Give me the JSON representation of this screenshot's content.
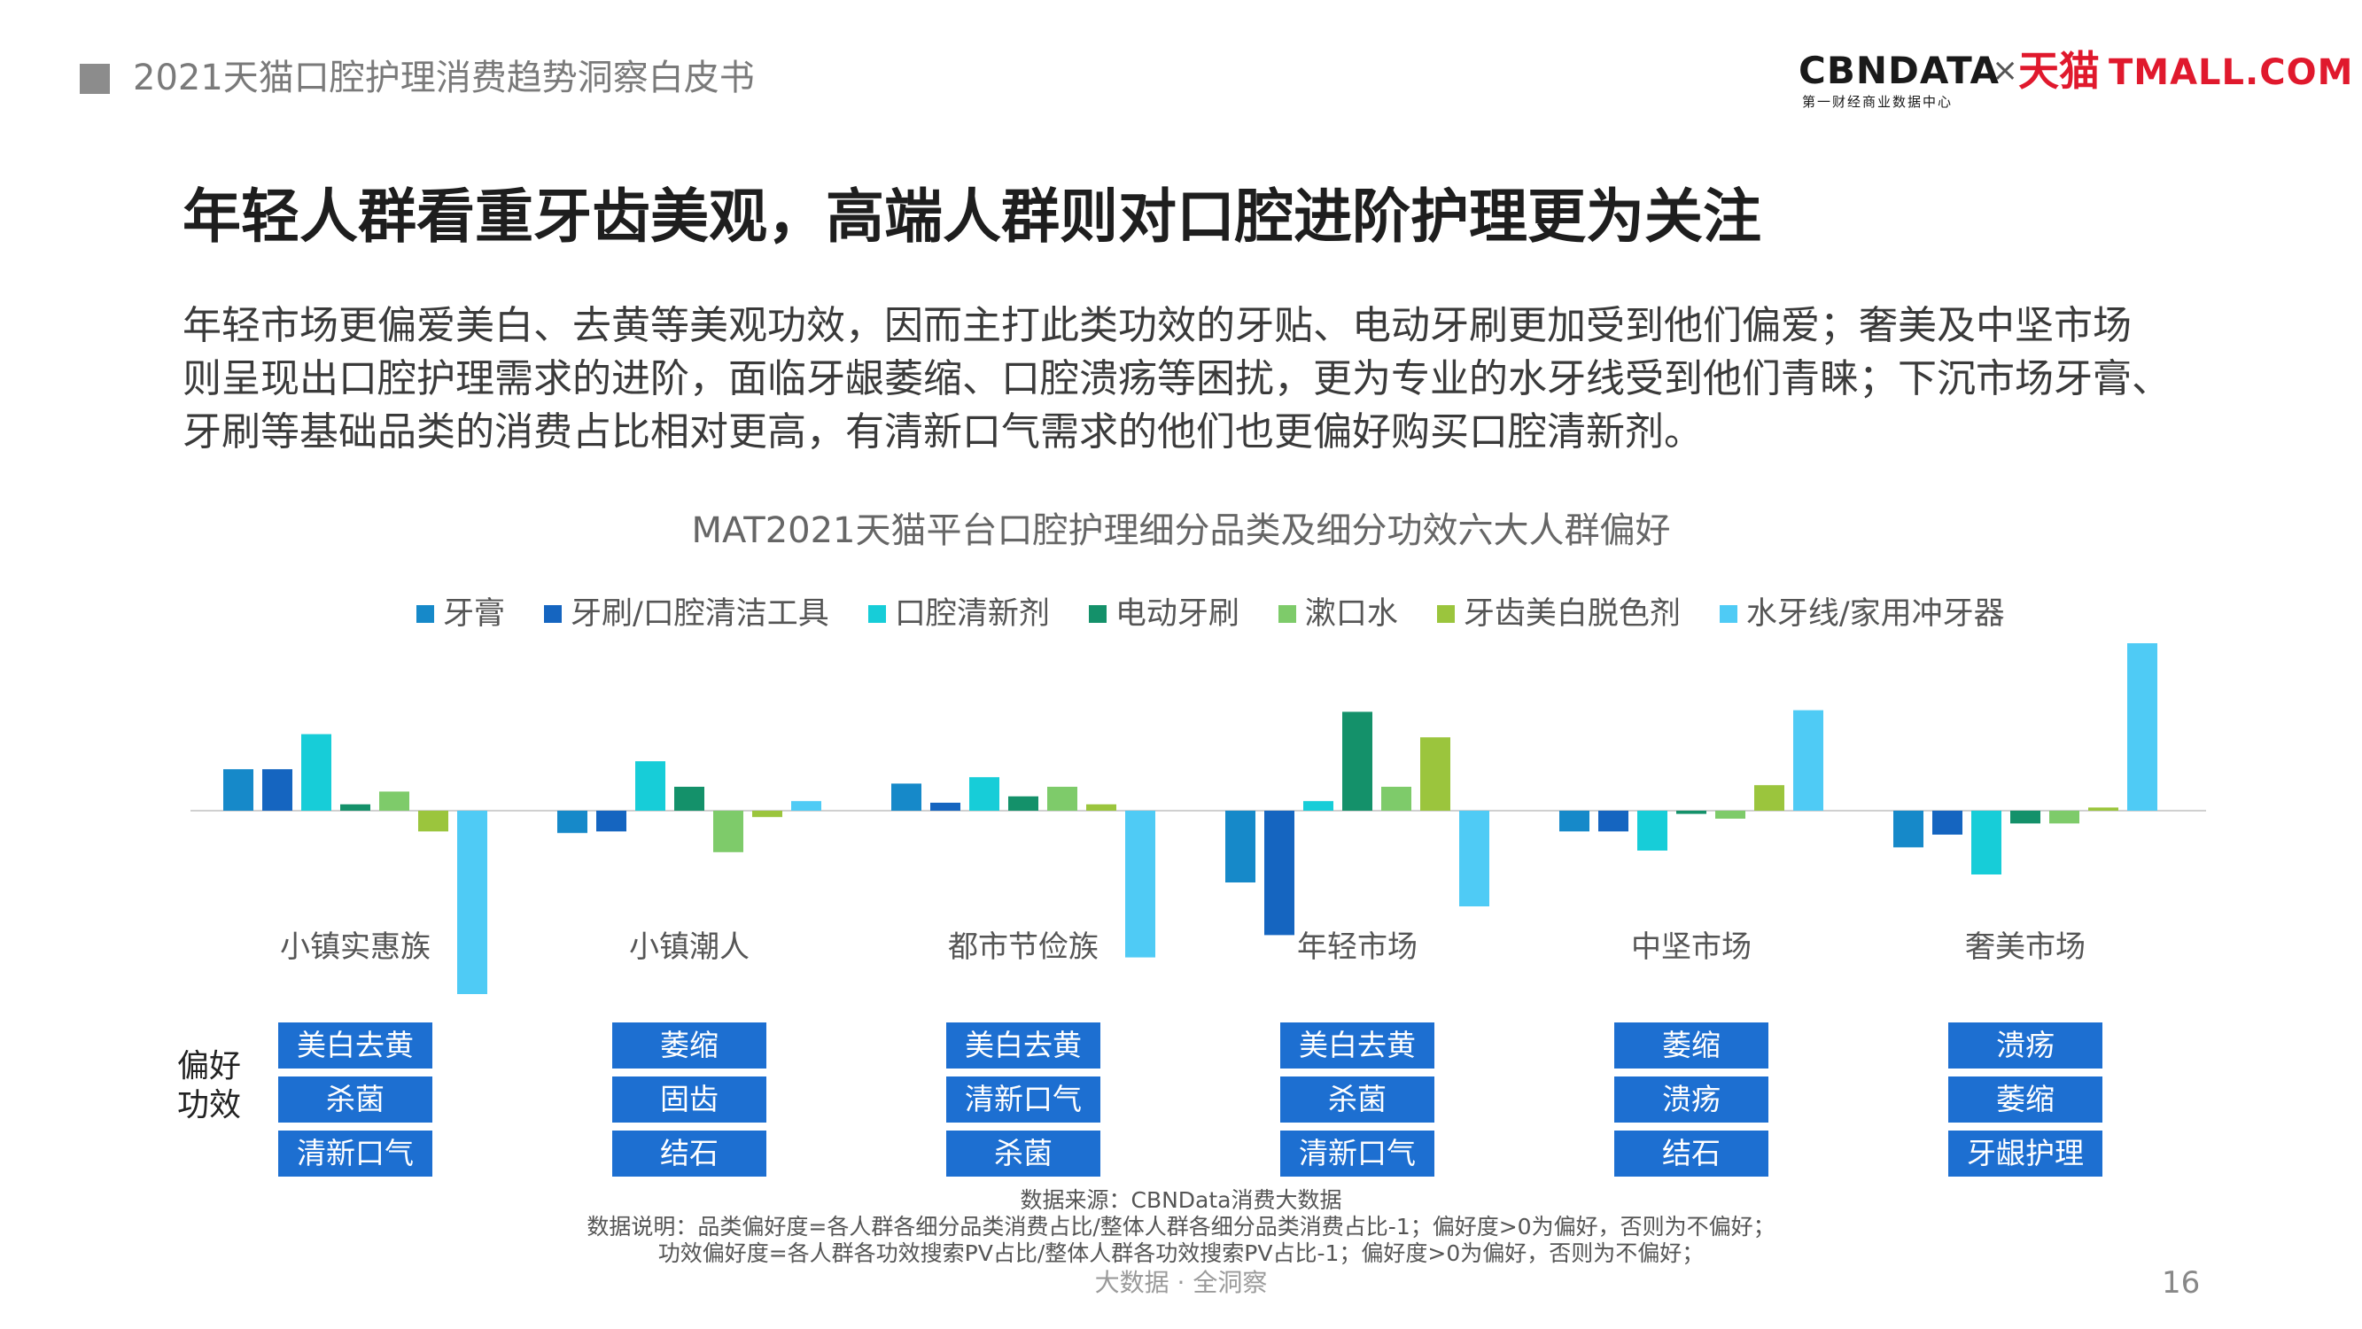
{
  "header": {
    "doc_title": "2021天猫口腔护理消费趋势洞察白皮书",
    "logo_cbn": "CBNDATA",
    "logo_cbn_sub": "第一财经商业数据中心",
    "logo_x": "×",
    "logo_tmall_cn": "天猫",
    "logo_tmall_en": "TMALL.COM"
  },
  "headline": "年轻人群看重牙齿美观，高端人群则对口腔进阶护理更为关注",
  "body_lines": [
    "年轻市场更偏爱美白、去黄等美观功效，因而主打此类功效的牙贴、电动牙刷更加受到他们偏爱；奢美及中坚市场",
    "则呈现出口腔护理需求的进阶，面临牙龈萎缩、口腔溃疡等困扰，更为专业的水牙线受到他们青睐；下沉市场牙膏、",
    "牙刷等基础品类的消费占比相对更高，有清新口气需求的他们也更偏好购买口腔清新剂。"
  ],
  "chart_data": {
    "type": "bar",
    "title": "MAT2021天猫平台口腔护理细分品类及细分功效六大人群偏好",
    "categories": [
      "小镇实惠族",
      "小镇潮人",
      "都市节俭族",
      "年轻市场",
      "中坚市场",
      "奢美市场"
    ],
    "series": [
      {
        "name": "牙膏",
        "color": "#1689c9",
        "values": [
          0.26,
          -0.14,
          0.17,
          -0.45,
          -0.13,
          -0.23
        ]
      },
      {
        "name": "牙刷/口腔清洁工具",
        "color": "#1565c0",
        "values": [
          0.26,
          -0.13,
          0.05,
          -0.78,
          -0.13,
          -0.15
        ]
      },
      {
        "name": "口腔清新剂",
        "color": "#17cdd8",
        "values": [
          0.48,
          0.31,
          0.21,
          0.06,
          -0.25,
          -0.4
        ]
      },
      {
        "name": "电动牙刷",
        "color": "#14916a",
        "values": [
          0.04,
          0.15,
          0.09,
          0.62,
          -0.02,
          -0.08
        ]
      },
      {
        "name": "漱口水",
        "color": "#7ecb6a",
        "values": [
          0.12,
          -0.26,
          0.15,
          0.15,
          -0.05,
          -0.08
        ]
      },
      {
        "name": "牙齿美白脱色剂",
        "color": "#9bc53d",
        "values": [
          -0.13,
          -0.04,
          0.04,
          0.46,
          0.16,
          0.02
        ]
      },
      {
        "name": "水牙线/家用冲牙器",
        "color": "#4fcbf5",
        "values": [
          -1.15,
          0.06,
          -0.92,
          -0.6,
          0.63,
          1.05
        ]
      }
    ],
    "legend_position": "top",
    "grid": false,
    "ylabel": "",
    "ylim": [
      -1.2,
      1.1
    ]
  },
  "pref_label_line1": "偏好",
  "pref_label_line2": "功效",
  "efficacy": [
    [
      "美白去黄",
      "杀菌",
      "清新口气"
    ],
    [
      "萎缩",
      "固齿",
      "结石"
    ],
    [
      "美白去黄",
      "清新口气",
      "杀菌"
    ],
    [
      "美白去黄",
      "杀菌",
      "清新口气"
    ],
    [
      "萎缩",
      "溃疡",
      "结石"
    ],
    [
      "溃疡",
      "萎缩",
      "牙龈护理"
    ]
  ],
  "footer": {
    "source": "数据来源：CBNData消费大数据",
    "note1": "数据说明：品类偏好度=各人群各细分品类消费占比/整体人群各细分品类消费占比-1；偏好度>0为偏好，否则为不偏好；",
    "note2": "功效偏好度=各人群各功效搜索PV占比/整体人群各功效搜索PV占比-1；偏好度>0为偏好，否则为不偏好；",
    "tagline": "大数据 · 全洞察",
    "page_number": "16"
  }
}
